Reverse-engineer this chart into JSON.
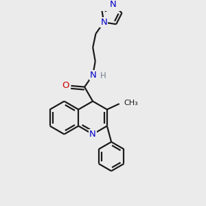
{
  "bg_color": "#ebebeb",
  "bond_color": "#1a1a1a",
  "N_color": "#0000cc",
  "O_color": "#cc0000",
  "H_color": "#708090",
  "lw": 1.6,
  "figsize": [
    3.0,
    3.0
  ],
  "dpi": 100,
  "xlim": [
    0,
    10
  ],
  "ylim": [
    0,
    10
  ]
}
